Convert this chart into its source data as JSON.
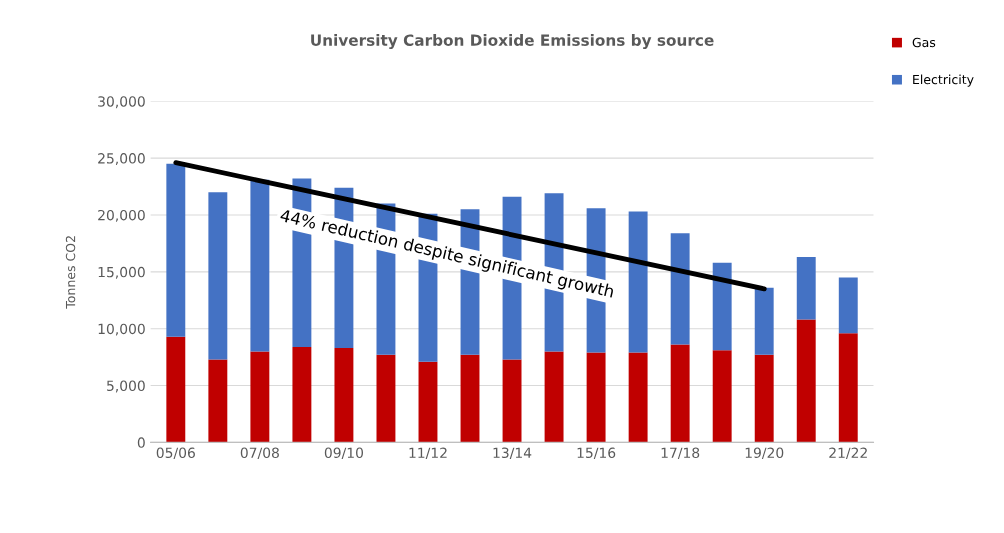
{
  "chart_data": {
    "type": "bar",
    "title": "University Carbon Dioxide Emissions by source",
    "ylabel": "Tonnes CO2",
    "categories": [
      "05/06",
      null,
      "07/08",
      null,
      "09/10",
      null,
      "11/12",
      null,
      "13/14",
      null,
      "15/16",
      null,
      "17/18",
      null,
      "19/20",
      null,
      "21/22"
    ],
    "stacked": true,
    "series": [
      {
        "name": "Gas",
        "color": "#c00000",
        "values": [
          9300,
          7300,
          8000,
          8400,
          8300,
          7700,
          7100,
          7700,
          7300,
          8000,
          7900,
          7900,
          8600,
          8100,
          7700,
          10800,
          9600
        ]
      },
      {
        "name": "Electricity",
        "color": "#4472c4",
        "values": [
          15200,
          14700,
          15100,
          14800,
          14100,
          13300,
          13000,
          12800,
          14300,
          13900,
          12700,
          12400,
          9800,
          7700,
          5900,
          5500,
          4900
        ]
      },
      {
        "type": "line",
        "color": "#000000",
        "x": [
          "05/06",
          "19/20"
        ],
        "values": [
          24600,
          13500
        ]
      }
    ],
    "annotations": [
      "44% reduction despite significant growth"
    ],
    "ylim": [
      0,
      30000
    ],
    "yticks": [
      {
        "value": 0,
        "label": "0"
      },
      {
        "value": 5000,
        "label": "5,000"
      },
      {
        "value": 10000,
        "label": "10,000"
      },
      {
        "value": 15000,
        "label": "15,000"
      },
      {
        "value": 20000,
        "label": "20,000"
      },
      {
        "value": 25000,
        "label": "25,000"
      },
      {
        "value": 30000,
        "label": "30,000"
      }
    ],
    "grid": "y",
    "legend": "top right"
  }
}
